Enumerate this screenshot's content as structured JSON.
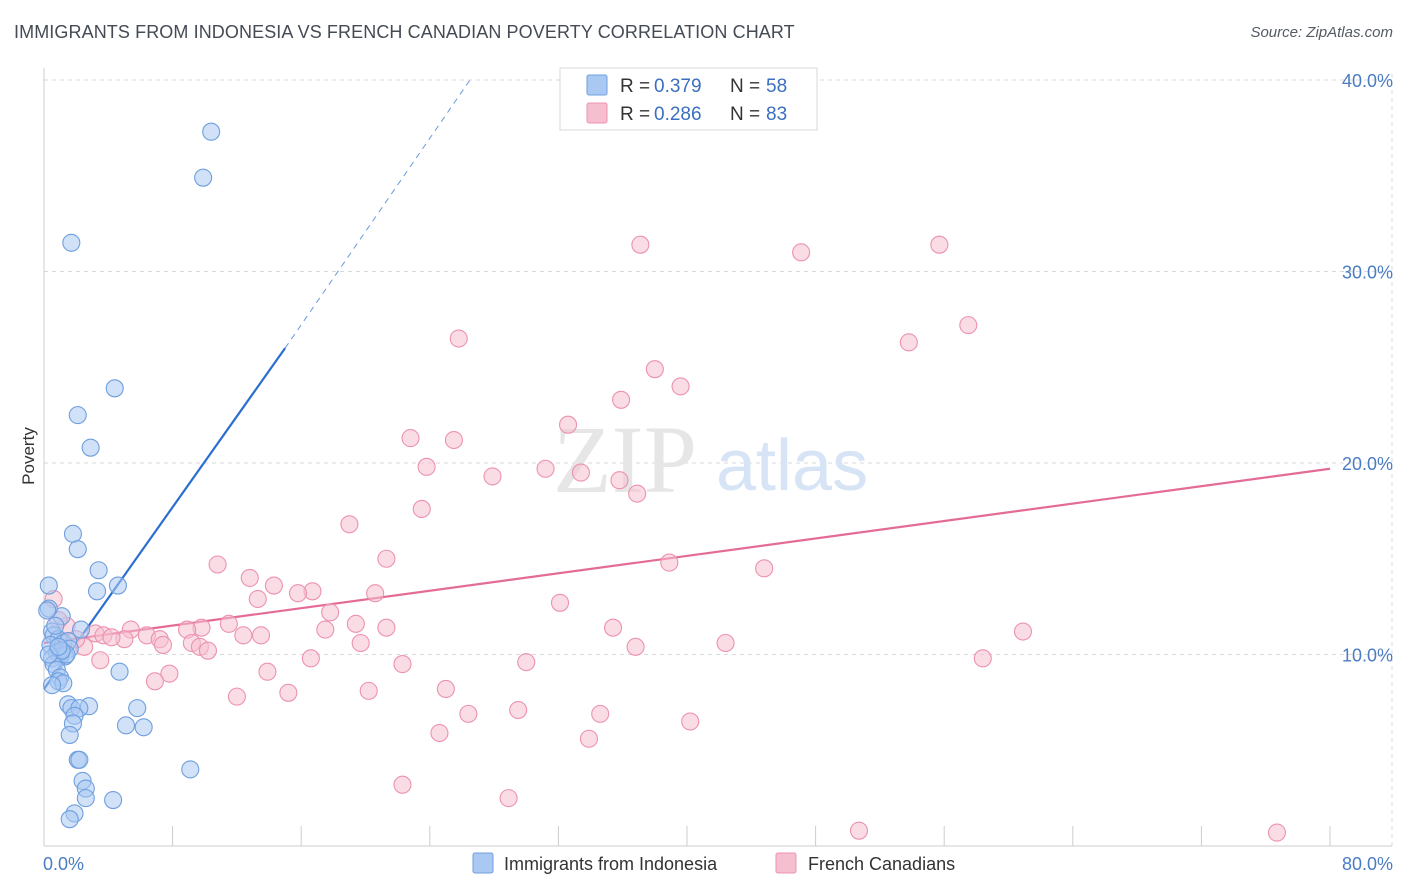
{
  "title": "IMMIGRANTS FROM INDONESIA VS FRENCH CANADIAN POVERTY CORRELATION CHART",
  "source": "Source: ZipAtlas.com",
  "watermark": {
    "left": "ZIP",
    "right": "atlas"
  },
  "colors": {
    "blue_fill": "#a9c8f2",
    "blue_stroke": "#6f9fde",
    "blue_line": "#2a6fcf",
    "pink_fill": "#f6bfd0",
    "pink_stroke": "#ec92b1",
    "pink_line": "#e46b97",
    "tick_color": "#4a7cc4",
    "grid": "#d9d9d9"
  },
  "legend": {
    "r_label": "R =",
    "n_label": "N =",
    "rows": [
      {
        "r": "0.379",
        "n": "58",
        "series": "blue"
      },
      {
        "r": "0.286",
        "n": "83",
        "series": "pink"
      }
    ]
  },
  "bottom_legend": [
    "Immigrants from Indonesia",
    "French Canadians"
  ],
  "chart_data": {
    "type": "scatter",
    "ylabel": "Poverty",
    "xlim": [
      0,
      80
    ],
    "ylim": [
      0,
      40
    ],
    "x_tick_labels": [
      "0.0%",
      "80.0%"
    ],
    "y_ticks": [
      {
        "value": 10,
        "label": "10.0%"
      },
      {
        "value": 20,
        "label": "20.0%"
      },
      {
        "value": 30,
        "label": "30.0%"
      },
      {
        "value": 40,
        "label": "40.0%"
      }
    ],
    "grid": true,
    "legend_position": "top-center",
    "series": [
      {
        "name": "Immigrants from Indonesia",
        "color": "blue",
        "trend": {
          "x0": 0,
          "y0": 8.2,
          "x1": 15,
          "y1": 26.0,
          "dash_x1": 26.5,
          "dash_y1": 40.0
        },
        "points": [
          [
            10.4,
            37.3
          ],
          [
            9.9,
            34.9
          ],
          [
            1.7,
            31.5
          ],
          [
            2.1,
            22.5
          ],
          [
            4.4,
            23.9
          ],
          [
            2.9,
            20.8
          ],
          [
            1.8,
            16.3
          ],
          [
            2.1,
            15.5
          ],
          [
            3.4,
            14.4
          ],
          [
            4.6,
            13.6
          ],
          [
            0.3,
            13.6
          ],
          [
            3.3,
            13.3
          ],
          [
            1.1,
            12.0
          ],
          [
            0.3,
            12.4
          ],
          [
            2.3,
            11.3
          ],
          [
            0.5,
            11.2
          ],
          [
            0.6,
            11.0
          ],
          [
            0.9,
            10.8
          ],
          [
            1.2,
            10.6
          ],
          [
            1.5,
            10.7
          ],
          [
            0.4,
            10.5
          ],
          [
            1.6,
            10.3
          ],
          [
            0.8,
            10.1
          ],
          [
            1.3,
            9.9
          ],
          [
            1.0,
            9.9
          ],
          [
            0.5,
            9.8
          ],
          [
            1.4,
            10.0
          ],
          [
            0.6,
            9.5
          ],
          [
            0.8,
            9.2
          ],
          [
            4.7,
            9.1
          ],
          [
            1.0,
            8.8
          ],
          [
            0.9,
            8.6
          ],
          [
            1.2,
            8.5
          ],
          [
            0.5,
            8.4
          ],
          [
            1.5,
            7.4
          ],
          [
            1.7,
            7.2
          ],
          [
            2.8,
            7.3
          ],
          [
            2.2,
            7.2
          ],
          [
            5.8,
            7.2
          ],
          [
            1.9,
            6.8
          ],
          [
            1.8,
            6.4
          ],
          [
            5.1,
            6.3
          ],
          [
            6.2,
            6.2
          ],
          [
            1.6,
            5.8
          ],
          [
            2.1,
            4.5
          ],
          [
            2.2,
            4.5
          ],
          [
            9.1,
            4.0
          ],
          [
            2.4,
            3.4
          ],
          [
            2.6,
            3.0
          ],
          [
            2.6,
            2.5
          ],
          [
            4.3,
            2.4
          ],
          [
            1.9,
            1.7
          ],
          [
            1.6,
            1.4
          ],
          [
            0.2,
            12.3
          ],
          [
            0.7,
            11.5
          ],
          [
            1.1,
            10.2
          ],
          [
            0.3,
            10.0
          ],
          [
            0.9,
            10.4
          ]
        ]
      },
      {
        "name": "French Canadians",
        "color": "pink",
        "trend": {
          "x0": 0,
          "y0": 10.6,
          "x1": 80,
          "y1": 19.7
        },
        "points": [
          [
            37.1,
            31.4
          ],
          [
            47.1,
            31.0
          ],
          [
            55.7,
            31.4
          ],
          [
            25.8,
            26.5
          ],
          [
            57.5,
            27.2
          ],
          [
            53.8,
            26.3
          ],
          [
            38.0,
            24.9
          ],
          [
            39.6,
            24.0
          ],
          [
            35.9,
            23.3
          ],
          [
            32.6,
            22.0
          ],
          [
            22.8,
            21.3
          ],
          [
            25.5,
            21.2
          ],
          [
            23.8,
            19.8
          ],
          [
            31.2,
            19.7
          ],
          [
            33.4,
            19.5
          ],
          [
            27.9,
            19.3
          ],
          [
            35.8,
            19.1
          ],
          [
            36.9,
            18.4
          ],
          [
            23.5,
            17.6
          ],
          [
            19.0,
            16.8
          ],
          [
            21.3,
            15.0
          ],
          [
            10.8,
            14.7
          ],
          [
            38.9,
            14.8
          ],
          [
            44.8,
            14.5
          ],
          [
            12.8,
            14.0
          ],
          [
            14.3,
            13.6
          ],
          [
            16.7,
            13.3
          ],
          [
            15.8,
            13.2
          ],
          [
            20.6,
            13.2
          ],
          [
            13.3,
            12.9
          ],
          [
            32.1,
            12.7
          ],
          [
            17.8,
            12.2
          ],
          [
            11.5,
            11.6
          ],
          [
            19.4,
            11.6
          ],
          [
            5.4,
            11.3
          ],
          [
            9.8,
            11.4
          ],
          [
            8.9,
            11.3
          ],
          [
            17.5,
            11.3
          ],
          [
            21.3,
            11.4
          ],
          [
            35.4,
            11.4
          ],
          [
            60.9,
            11.2
          ],
          [
            6.4,
            11.0
          ],
          [
            3.2,
            11.1
          ],
          [
            3.7,
            11.0
          ],
          [
            12.4,
            11.0
          ],
          [
            13.5,
            11.0
          ],
          [
            5.0,
            10.8
          ],
          [
            7.2,
            10.8
          ],
          [
            9.2,
            10.6
          ],
          [
            19.7,
            10.6
          ],
          [
            7.4,
            10.5
          ],
          [
            2.5,
            10.4
          ],
          [
            9.7,
            10.4
          ],
          [
            42.4,
            10.6
          ],
          [
            36.8,
            10.4
          ],
          [
            10.2,
            10.2
          ],
          [
            3.5,
            9.7
          ],
          [
            16.6,
            9.8
          ],
          [
            30.0,
            9.6
          ],
          [
            58.4,
            9.8
          ],
          [
            22.3,
            9.5
          ],
          [
            13.9,
            9.1
          ],
          [
            7.8,
            9.0
          ],
          [
            6.9,
            8.6
          ],
          [
            15.2,
            8.0
          ],
          [
            20.2,
            8.1
          ],
          [
            12.0,
            7.8
          ],
          [
            25.0,
            8.2
          ],
          [
            29.5,
            7.1
          ],
          [
            26.4,
            6.9
          ],
          [
            34.6,
            6.9
          ],
          [
            40.2,
            6.5
          ],
          [
            24.6,
            5.9
          ],
          [
            33.9,
            5.6
          ],
          [
            22.3,
            3.2
          ],
          [
            28.9,
            2.5
          ],
          [
            50.7,
            0.8
          ],
          [
            76.7,
            0.7
          ],
          [
            0.6,
            12.9
          ],
          [
            1.4,
            11.5
          ],
          [
            2.0,
            10.8
          ],
          [
            4.2,
            10.9
          ],
          [
            0.9,
            11.8
          ]
        ]
      }
    ]
  }
}
